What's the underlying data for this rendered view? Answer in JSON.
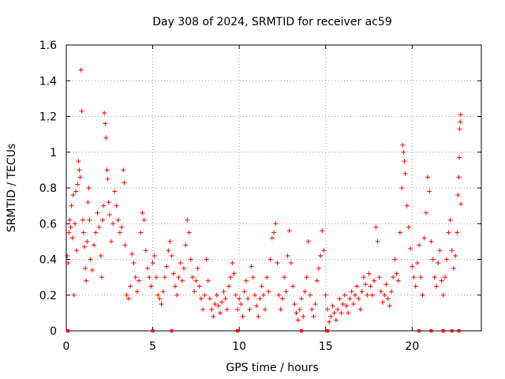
{
  "chart_data": {
    "type": "scatter",
    "title": "Day 308 of 2024, SRMTID for receiver ac59",
    "xlabel": "GPS time / hours",
    "ylabel": "SRMTID / TECUs",
    "xlim": [
      0,
      24
    ],
    "ylim": [
      0,
      1.6
    ],
    "x_ticks": [
      0,
      5,
      10,
      15,
      20
    ],
    "x_tick_labels": [
      "0",
      "5",
      "10",
      "15",
      "20"
    ],
    "y_ticks": [
      0,
      0.2,
      0.4,
      0.6,
      0.8,
      1.0,
      1.2,
      1.4,
      1.6
    ],
    "y_tick_labels": [
      "0",
      "0.2",
      "0.4",
      "0.6",
      "0.8",
      "1",
      "1.2",
      "1.4",
      "1.6"
    ],
    "grid": true,
    "marker": "+",
    "point_color": "#ff0000",
    "series": [
      {
        "name": "SRMTID",
        "points": [
          [
            0.05,
            0.42
          ],
          [
            0.1,
            0.38
          ],
          [
            0.15,
            0.55
          ],
          [
            0.2,
            0.62
          ],
          [
            0.25,
            0.58
          ],
          [
            0.3,
            0.7
          ],
          [
            0.35,
            0.52
          ],
          [
            0.4,
            0.76
          ],
          [
            0.45,
            0.2
          ],
          [
            0.5,
            0.6
          ],
          [
            0.55,
            0.78
          ],
          [
            0.6,
            0.45
          ],
          [
            0.65,
            0.82
          ],
          [
            0.7,
            0.95
          ],
          [
            0.75,
            0.9
          ],
          [
            0.8,
            0.86
          ],
          [
            0.85,
            1.46
          ],
          [
            0.9,
            1.23
          ],
          [
            0.95,
            0.62
          ],
          [
            1.0,
            0.55
          ],
          [
            1.05,
            0.47
          ],
          [
            1.1,
            0.35
          ],
          [
            1.15,
            0.28
          ],
          [
            1.2,
            0.5
          ],
          [
            1.25,
            0.72
          ],
          [
            1.3,
            0.8
          ],
          [
            1.35,
            0.62
          ],
          [
            1.4,
            0.4
          ],
          [
            1.5,
            0.34
          ],
          [
            1.6,
            0.48
          ],
          [
            1.7,
            0.55
          ],
          [
            1.8,
            0.66
          ],
          [
            1.9,
            0.58
          ],
          [
            2.0,
            0.42
          ],
          [
            2.05,
            0.3
          ],
          [
            2.1,
            0.62
          ],
          [
            2.15,
            0.7
          ],
          [
            2.2,
            1.22
          ],
          [
            2.25,
            1.16
          ],
          [
            2.3,
            1.08
          ],
          [
            2.35,
            0.9
          ],
          [
            2.4,
            0.85
          ],
          [
            2.45,
            0.72
          ],
          [
            2.5,
            0.65
          ],
          [
            2.6,
            0.5
          ],
          [
            2.7,
            0.6
          ],
          [
            2.8,
            0.78
          ],
          [
            2.9,
            0.7
          ],
          [
            3.0,
            0.62
          ],
          [
            3.1,
            0.55
          ],
          [
            3.2,
            0.58
          ],
          [
            3.3,
            0.9
          ],
          [
            3.35,
            0.83
          ],
          [
            3.4,
            0.48
          ],
          [
            3.5,
            0.2
          ],
          [
            3.6,
            0.18
          ],
          [
            3.7,
            0.25
          ],
          [
            3.8,
            0.43
          ],
          [
            3.9,
            0.38
          ],
          [
            4.0,
            0.3
          ],
          [
            4.1,
            0.22
          ],
          [
            4.2,
            0.28
          ],
          [
            4.3,
            0.55
          ],
          [
            4.4,
            0.66
          ],
          [
            4.5,
            0.62
          ],
          [
            4.6,
            0.45
          ],
          [
            4.7,
            0.35
          ],
          [
            4.8,
            0.3
          ],
          [
            4.9,
            0.25
          ],
          [
            5.0,
            0.38
          ],
          [
            5.1,
            0.42
          ],
          [
            5.2,
            0.3
          ],
          [
            5.3,
            0.2
          ],
          [
            5.4,
            0.18
          ],
          [
            5.5,
            0.15
          ],
          [
            5.6,
            0.22
          ],
          [
            5.7,
            0.3
          ],
          [
            5.8,
            0.36
          ],
          [
            5.9,
            0.45
          ],
          [
            6.0,
            0.5
          ],
          [
            6.1,
            0.42
          ],
          [
            6.2,
            0.32
          ],
          [
            6.3,
            0.25
          ],
          [
            6.4,
            0.2
          ],
          [
            6.5,
            0.3
          ],
          [
            6.6,
            0.38
          ],
          [
            6.7,
            0.28
          ],
          [
            6.8,
            0.35
          ],
          [
            6.9,
            0.48
          ],
          [
            7.0,
            0.62
          ],
          [
            7.1,
            0.55
          ],
          [
            7.2,
            0.4
          ],
          [
            7.3,
            0.3
          ],
          [
            7.4,
            0.22
          ],
          [
            7.5,
            0.28
          ],
          [
            7.6,
            0.35
          ],
          [
            7.7,
            0.25
          ],
          [
            7.8,
            0.18
          ],
          [
            7.9,
            0.12
          ],
          [
            8.0,
            0.2
          ],
          [
            8.1,
            0.4
          ],
          [
            8.2,
            0.28
          ],
          [
            8.3,
            0.18
          ],
          [
            8.4,
            0.12
          ],
          [
            8.5,
            0.08
          ],
          [
            8.6,
            0.15
          ],
          [
            8.7,
            0.2
          ],
          [
            8.8,
            0.14
          ],
          [
            8.9,
            0.1
          ],
          [
            9.0,
            0.16
          ],
          [
            9.1,
            0.22
          ],
          [
            9.2,
            0.18
          ],
          [
            9.3,
            0.12
          ],
          [
            9.4,
            0.25
          ],
          [
            9.5,
            0.3
          ],
          [
            9.6,
            0.38
          ],
          [
            9.7,
            0.32
          ],
          [
            9.8,
            0.2
          ],
          [
            9.9,
            0.12
          ],
          [
            10.0,
            0.18
          ],
          [
            10.1,
            0.15
          ],
          [
            10.2,
            0.08
          ],
          [
            10.3,
            0.22
          ],
          [
            10.4,
            0.28
          ],
          [
            10.5,
            0.18
          ],
          [
            10.6,
            0.12
          ],
          [
            10.7,
            0.36
          ],
          [
            10.8,
            0.3
          ],
          [
            10.9,
            0.2
          ],
          [
            11.0,
            0.14
          ],
          [
            11.1,
            0.08
          ],
          [
            11.2,
            0.18
          ],
          [
            11.3,
            0.25
          ],
          [
            11.4,
            0.2
          ],
          [
            11.5,
            0.12
          ],
          [
            11.6,
            0.3
          ],
          [
            11.7,
            0.22
          ],
          [
            11.8,
            0.4
          ],
          [
            11.9,
            0.52
          ],
          [
            12.0,
            0.55
          ],
          [
            12.1,
            0.6
          ],
          [
            12.2,
            0.38
          ],
          [
            12.3,
            0.2
          ],
          [
            12.4,
            0.12
          ],
          [
            12.5,
            0.18
          ],
          [
            12.6,
            0.3
          ],
          [
            12.7,
            0.22
          ],
          [
            12.8,
            0.42
          ],
          [
            12.9,
            0.56
          ],
          [
            13.0,
            0.38
          ],
          [
            13.1,
            0.25
          ],
          [
            13.2,
            0.15
          ],
          [
            13.3,
            0.1
          ],
          [
            13.4,
            0.06
          ],
          [
            13.5,
            0.12
          ],
          [
            13.6,
            0.18
          ],
          [
            13.7,
            0.08
          ],
          [
            13.8,
            0.22
          ],
          [
            13.9,
            0.3
          ],
          [
            14.0,
            0.5
          ],
          [
            14.1,
            0.2
          ],
          [
            14.2,
            0.12
          ],
          [
            14.3,
            0.08
          ],
          [
            14.4,
            0.15
          ],
          [
            14.5,
            0.28
          ],
          [
            14.6,
            0.35
          ],
          [
            14.7,
            0.42
          ],
          [
            14.8,
            0.56
          ],
          [
            14.9,
            0.45
          ],
          [
            15.0,
            0.2
          ],
          [
            15.1,
            0.12
          ],
          [
            15.2,
            0.05
          ],
          [
            15.3,
            0.08
          ],
          [
            15.4,
            0.14
          ],
          [
            15.5,
            0.1
          ],
          [
            15.6,
            0.06
          ],
          [
            15.7,
            0.12
          ],
          [
            15.8,
            0.18
          ],
          [
            15.9,
            0.1
          ],
          [
            16.0,
            0.15
          ],
          [
            16.1,
            0.2
          ],
          [
            16.2,
            0.14
          ],
          [
            16.3,
            0.1
          ],
          [
            16.4,
            0.18
          ],
          [
            16.5,
            0.22
          ],
          [
            16.6,
            0.15
          ],
          [
            16.7,
            0.2
          ],
          [
            16.8,
            0.25
          ],
          [
            16.9,
            0.18
          ],
          [
            17.0,
            0.12
          ],
          [
            17.1,
            0.22
          ],
          [
            17.2,
            0.3
          ],
          [
            17.3,
            0.26
          ],
          [
            17.4,
            0.2
          ],
          [
            17.5,
            0.32
          ],
          [
            17.6,
            0.25
          ],
          [
            17.7,
            0.2
          ],
          [
            17.8,
            0.28
          ],
          [
            17.9,
            0.58
          ],
          [
            18.0,
            0.5
          ],
          [
            18.1,
            0.3
          ],
          [
            18.2,
            0.22
          ],
          [
            18.3,
            0.16
          ],
          [
            18.4,
            0.2
          ],
          [
            18.5,
            0.26
          ],
          [
            18.6,
            0.18
          ],
          [
            18.7,
            0.14
          ],
          [
            18.8,
            0.22
          ],
          [
            18.9,
            0.3
          ],
          [
            19.0,
            0.4
          ],
          [
            19.1,
            0.32
          ],
          [
            19.2,
            0.28
          ],
          [
            19.3,
            0.55
          ],
          [
            19.4,
            0.8
          ],
          [
            19.45,
            1.04
          ],
          [
            19.5,
            1.0
          ],
          [
            19.55,
            0.95
          ],
          [
            19.6,
            0.88
          ],
          [
            19.7,
            0.7
          ],
          [
            19.8,
            0.58
          ],
          [
            19.9,
            0.46
          ],
          [
            20.0,
            0.36
          ],
          [
            20.1,
            0.3
          ],
          [
            20.2,
            0.25
          ],
          [
            20.3,
            0.38
          ],
          [
            20.4,
            0.48
          ],
          [
            20.5,
            0.3
          ],
          [
            20.6,
            0.2
          ],
          [
            20.7,
            0.52
          ],
          [
            20.8,
            0.66
          ],
          [
            20.9,
            0.86
          ],
          [
            21.0,
            0.78
          ],
          [
            21.1,
            0.5
          ],
          [
            21.2,
            0.4
          ],
          [
            21.3,
            0.3
          ],
          [
            21.4,
            0.25
          ],
          [
            21.5,
            0.38
          ],
          [
            21.6,
            0.45
          ],
          [
            21.7,
            0.28
          ],
          [
            21.8,
            0.2
          ],
          [
            21.9,
            0.3
          ],
          [
            22.0,
            0.4
          ],
          [
            22.1,
            0.55
          ],
          [
            22.2,
            0.62
          ],
          [
            22.3,
            0.45
          ],
          [
            22.4,
            0.35
          ],
          [
            22.5,
            0.42
          ],
          [
            22.6,
            0.55
          ],
          [
            22.65,
            0.76
          ],
          [
            22.7,
            0.86
          ],
          [
            22.72,
            0.97
          ],
          [
            22.75,
            1.13
          ],
          [
            22.78,
            1.17
          ],
          [
            22.8,
            1.21
          ],
          [
            22.82,
            0.71
          ]
        ]
      }
    ],
    "zero_markers_x": [
      0.1,
      5.0,
      6.1,
      9.9,
      13.6,
      15.05,
      15.1,
      20.4,
      21.1,
      21.8,
      22.3,
      22.7
    ]
  }
}
